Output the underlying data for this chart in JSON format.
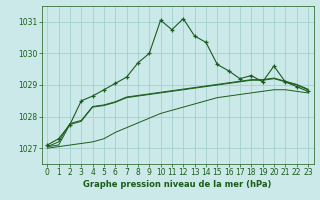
{
  "title": "Graphe pression niveau de la mer (hPa)",
  "background_color": "#cce9e9",
  "grid_color": "#99cccc",
  "line_color": "#1a5c1a",
  "xlim": [
    -0.5,
    23.5
  ],
  "ylim": [
    1026.5,
    1031.5
  ],
  "yticks": [
    1027,
    1028,
    1029,
    1030,
    1031
  ],
  "xticks": [
    0,
    1,
    2,
    3,
    4,
    5,
    6,
    7,
    8,
    9,
    10,
    11,
    12,
    13,
    14,
    15,
    16,
    17,
    18,
    19,
    20,
    21,
    22,
    23
  ],
  "series_main": [
    1027.1,
    1027.3,
    1027.75,
    1028.5,
    1028.65,
    1028.85,
    1029.05,
    1029.25,
    1029.7,
    1030.0,
    1031.05,
    1030.75,
    1031.1,
    1030.55,
    1030.35,
    1029.65,
    1029.45,
    1029.2,
    1029.3,
    1029.1,
    1029.6,
    1029.1,
    1028.95,
    1028.8
  ],
  "series_flat1": [
    1027.05,
    1027.1,
    1027.75,
    1027.85,
    1028.3,
    1028.35,
    1028.45,
    1028.6,
    1028.65,
    1028.7,
    1028.75,
    1028.8,
    1028.85,
    1028.9,
    1028.95,
    1029.0,
    1029.05,
    1029.1,
    1029.15,
    1029.15,
    1029.2,
    1029.1,
    1029.0,
    1028.85
  ],
  "series_flat2": [
    1027.0,
    1027.05,
    1027.1,
    1027.15,
    1027.2,
    1027.3,
    1027.5,
    1027.65,
    1027.8,
    1027.95,
    1028.1,
    1028.2,
    1028.3,
    1028.4,
    1028.5,
    1028.6,
    1028.65,
    1028.7,
    1028.75,
    1028.8,
    1028.85,
    1028.85,
    1028.8,
    1028.75
  ],
  "series_flat3": [
    1027.05,
    1027.2,
    1027.78,
    1027.88,
    1028.32,
    1028.37,
    1028.47,
    1028.62,
    1028.67,
    1028.72,
    1028.77,
    1028.82,
    1028.87,
    1028.92,
    1028.97,
    1029.02,
    1029.07,
    1029.12,
    1029.17,
    1029.17,
    1029.22,
    1029.12,
    1029.02,
    1028.87
  ]
}
